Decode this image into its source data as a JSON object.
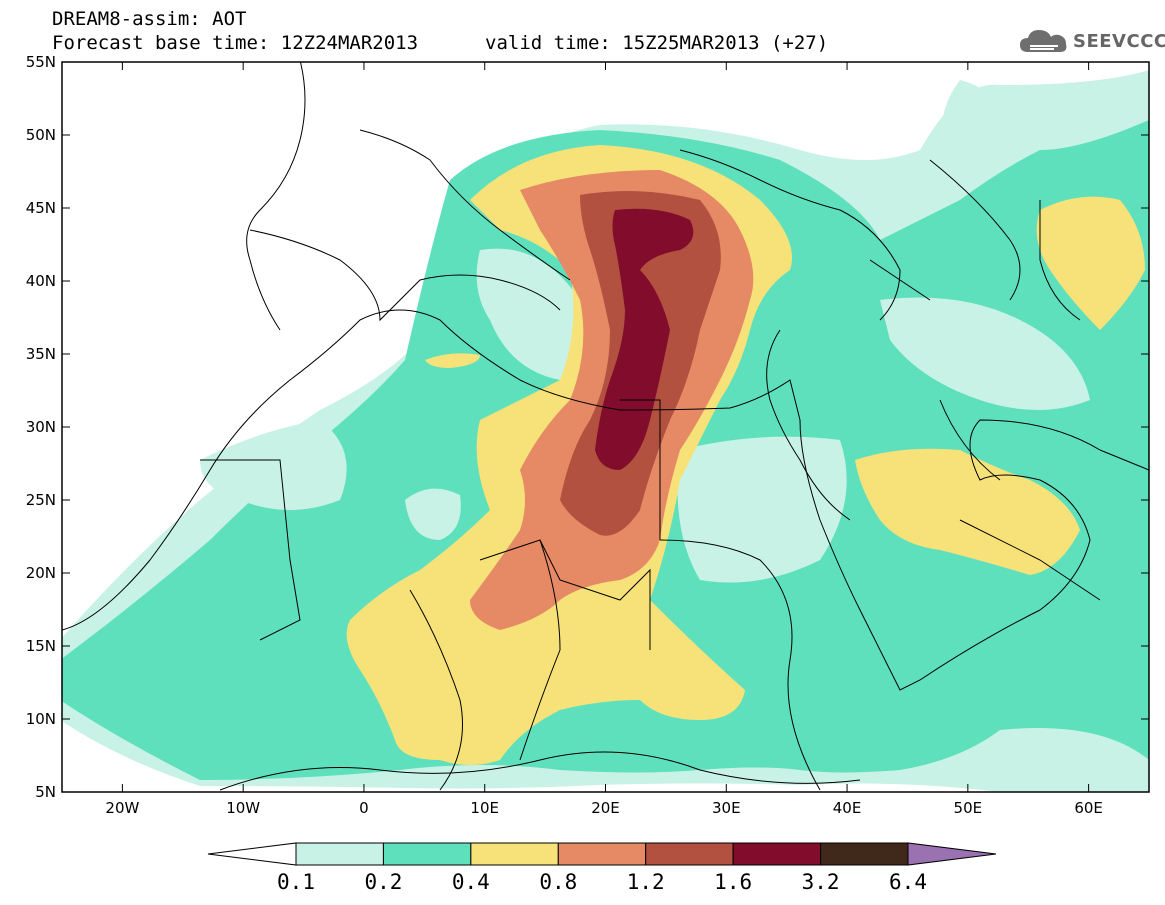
{
  "title": {
    "line1": "DREAM8-assim: AOT",
    "base_time": "Forecast base time: 12Z24MAR2013",
    "valid_time": "valid time: 15Z25MAR2013 (+27)"
  },
  "logo": {
    "text": "SEEVCCC",
    "icon": "cloud-icon"
  },
  "axes": {
    "lon_min": -25,
    "lon_max": 65,
    "lat_min": 5,
    "lat_max": 55,
    "x_ticks": [
      "20W",
      "10W",
      "0",
      "10E",
      "20E",
      "30E",
      "40E",
      "50E",
      "60E"
    ],
    "y_ticks": [
      "55N",
      "50N",
      "45N",
      "40N",
      "35N",
      "30N",
      "25N",
      "20N",
      "15N",
      "10N",
      "5N"
    ]
  },
  "colorbar": {
    "labels": [
      "0.1",
      "0.2",
      "0.4",
      "0.8",
      "1.2",
      "1.6",
      "3.2",
      "6.4"
    ],
    "colors": {
      "below": "#ffffff",
      "c1": "#c9f2e6",
      "c2": "#5fe0bc",
      "c3": "#f7e27a",
      "c4": "#e58a65",
      "c5": "#b2513f",
      "c6": "#820c2c",
      "c7": "#40281a",
      "above": "#9b72b1"
    }
  }
}
